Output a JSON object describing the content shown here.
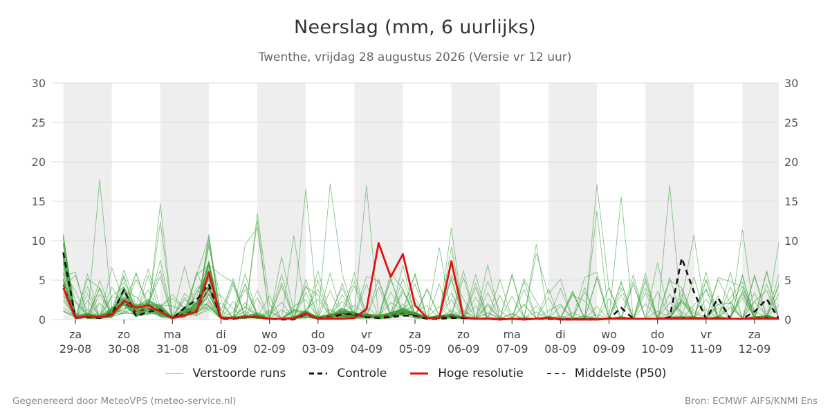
{
  "title": "Neerslag (mm, 6 uurlijks)",
  "subtitle": "Twenthe, vrijdag 28 augustus 2026 (Versie vr 12 uur)",
  "footer": {
    "left": "Gegenereerd door MeteoVPS (meteo-service.nl)",
    "right": "Bron: ECMWF AIFS/KNMI Ens"
  },
  "colors": {
    "ensemble": "#3a9e3a",
    "control": "#111111",
    "hires": "#e01010",
    "median": "#9b1010",
    "weekend_band": "#eeeeee",
    "grid": "#dddddd"
  },
  "chart_data": {
    "type": "line",
    "ylim": [
      0,
      30
    ],
    "yticks": [
      0,
      5,
      10,
      15,
      20,
      25,
      30
    ],
    "xlim": [
      -1,
      59
    ],
    "x_unit": "6-uurs stap",
    "days": [
      {
        "wd": "za",
        "date": "29-08"
      },
      {
        "wd": "zo",
        "date": "30-08"
      },
      {
        "wd": "ma",
        "date": "31-08"
      },
      {
        "wd": "di",
        "date": "01-09"
      },
      {
        "wd": "wo",
        "date": "02-09"
      },
      {
        "wd": "do",
        "date": "03-09"
      },
      {
        "wd": "vr",
        "date": "04-09"
      },
      {
        "wd": "za",
        "date": "05-09"
      },
      {
        "wd": "zo",
        "date": "06-09"
      },
      {
        "wd": "ma",
        "date": "07-09"
      },
      {
        "wd": "di",
        "date": "08-09"
      },
      {
        "wd": "wo",
        "date": "09-09"
      },
      {
        "wd": "do",
        "date": "10-09"
      },
      {
        "wd": "vr",
        "date": "11-09"
      },
      {
        "wd": "za",
        "date": "12-09"
      }
    ],
    "shaded_days": [
      0,
      2,
      4,
      6,
      8,
      10,
      12,
      14
    ],
    "grid": true,
    "legend_position": "bottom",
    "legend": [
      "Verstoorde runs",
      "Controle",
      "Hoge resolutie",
      "Middelste (P50)"
    ],
    "series": [
      {
        "key": "control",
        "values": [
          8.5,
          0.2,
          0.3,
          0.2,
          0.6,
          3.8,
          0.4,
          1.0,
          1.2,
          0.1,
          1.5,
          2.5,
          4.5,
          0.1,
          0.1,
          0.3,
          0.3,
          0.1,
          0,
          0,
          0.7,
          0.1,
          0.1,
          0.7,
          0.7,
          0.3,
          0.2,
          0.3,
          0.5,
          0.5,
          0.1,
          0.1,
          0.2,
          0.2,
          0.1,
          0.1,
          0,
          0.1,
          0,
          0.1,
          0.1,
          0,
          0,
          0,
          0,
          0.1,
          1.5,
          0.1,
          0.1,
          0.1,
          0.3,
          7.8,
          3.5,
          0.1,
          2.7,
          0.1,
          0.1,
          1.0,
          2.6,
          0.1,
          0.1
        ]
      },
      {
        "key": "hires",
        "values": [
          4.0,
          0.2,
          0.4,
          0.3,
          0.6,
          2.4,
          1.5,
          1.8,
          1.0,
          0.2,
          0.5,
          1.0,
          6.0,
          0.2,
          0.2,
          0.3,
          0.3,
          0.1,
          0.1,
          0.1,
          0.8,
          0.1,
          0.1,
          0.1,
          0.2,
          1.3,
          9.7,
          5.4,
          8.3,
          1.8,
          0.2,
          0.2,
          7.4,
          0.3,
          0.1,
          0.1,
          0,
          0.1,
          0,
          0.1,
          0.2,
          0,
          0,
          0,
          0,
          0.1,
          0.1,
          0.1,
          0.1,
          0.1,
          0.1,
          0.1,
          0.1,
          0.1,
          0.1,
          0.1,
          0.1,
          0.1,
          0.1,
          0.1
        ]
      },
      {
        "key": "median",
        "values": [
          4.4,
          0.3,
          0.4,
          0.3,
          0.8,
          2.2,
          1.0,
          1.4,
          1.0,
          0.2,
          0.8,
          1.2,
          4.0,
          0.2,
          0.2,
          0.3,
          0.4,
          0.1,
          0.1,
          0.2,
          0.6,
          0.2,
          0.4,
          0.8,
          0.5,
          0.4,
          0.3,
          0.5,
          0.8,
          0.5,
          0.2,
          0.3,
          0.4,
          0.2,
          0.1,
          0.1,
          0.1,
          0.1,
          0.1,
          0.1,
          0.2,
          0.1,
          0.1,
          0.1,
          0.1,
          0.1,
          0.2,
          0.1,
          0.1,
          0.1,
          0.2,
          0.2,
          0.2,
          0.1,
          0.2,
          0.1,
          0.1,
          0.2,
          0.3,
          0.1,
          0.1
        ]
      }
    ]
  }
}
